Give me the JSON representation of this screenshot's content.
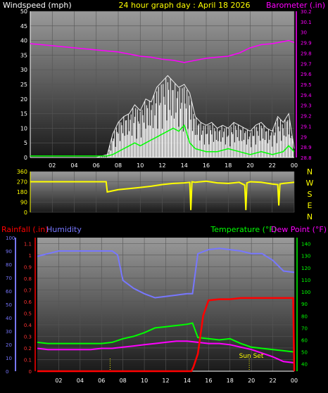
{
  "header": {
    "windspeed_label": "Windspeed (mph)",
    "title": "24 hour graph day : April 18 2026",
    "barometer_label": "Barometer (.in)"
  },
  "direction_labels": [
    "N",
    "W",
    "S",
    "E",
    "N"
  ],
  "lower_header": {
    "rainfall_label": "Rainfall (.in)",
    "humidity_label": "Humidity",
    "temperature_label": "Temperature (°F)",
    "dewpoint_label": "Dew Point (°F)"
  },
  "sunset_label": "Sun Set",
  "colors": {
    "windspeed": "#ffffff",
    "gust": "#ffffff",
    "wind_avg": "#00ff00",
    "barometer": "#ff00ff",
    "direction": "#ffff00",
    "rainfall": "#ff0000",
    "humidity": "#7777ff",
    "temperature": "#00ff00",
    "dewpoint": "#ff00ff",
    "sunset": "#ffff00"
  },
  "chart_data": [
    {
      "type": "line",
      "x_ticks": [
        "02",
        "04",
        "06",
        "08",
        "10",
        "12",
        "14",
        "16",
        "18",
        "20",
        "22",
        "00"
      ],
      "ylim": [
        0,
        50
      ],
      "y_ticks": [
        "0",
        "5",
        "10",
        "15",
        "20",
        "25",
        "30",
        "35",
        "40",
        "45",
        "50"
      ],
      "y2lim": [
        28.8,
        30.2
      ],
      "y2_ticks": [
        "28.8",
        "28.9",
        "29",
        "29.1",
        "29.2",
        "29.3",
        "29.4",
        "29.5",
        "29.6",
        "29.7",
        "29.8",
        "29.9",
        "30",
        "30.1",
        "30.2"
      ],
      "grid": true,
      "series": [
        {
          "name": "Windspeed (mph)",
          "x": [
            0,
            1,
            2,
            3,
            4,
            5,
            6,
            7,
            7.5,
            8,
            8.5,
            9,
            9.5,
            10,
            10.5,
            11,
            11.5,
            12,
            12.5,
            13,
            13.5,
            14,
            14.5,
            15,
            15.5,
            16,
            16.5,
            17,
            17.5,
            18,
            18.5,
            19,
            19.5,
            20,
            20.5,
            21,
            21.5,
            22,
            22.5,
            23,
            23.5,
            24
          ],
          "values": [
            0,
            0,
            0,
            0,
            0,
            0,
            0,
            1,
            8,
            12,
            14,
            15,
            18,
            16,
            20,
            19,
            24,
            26,
            28,
            26,
            24,
            25,
            22,
            14,
            12,
            11,
            12,
            10,
            11,
            10,
            12,
            11,
            10,
            9,
            11,
            12,
            10,
            9,
            14,
            12,
            15,
            3
          ]
        },
        {
          "name": "Average wind",
          "x": [
            0,
            7,
            7.5,
            8,
            8.5,
            9,
            9.5,
            10,
            10.5,
            11,
            11.5,
            12,
            12.5,
            13,
            13.5,
            14,
            14.5,
            15,
            16,
            17,
            18,
            19,
            20,
            21,
            22,
            23,
            23.5,
            24
          ],
          "values": [
            0.5,
            0.5,
            1,
            2,
            3,
            4,
            5,
            4,
            5,
            6,
            7,
            8,
            9,
            10,
            9,
            11,
            5,
            3,
            2,
            2,
            3,
            2,
            1,
            2,
            1,
            2,
            4,
            2
          ]
        },
        {
          "name": "Barometer (.in)",
          "axis": "y2",
          "x": [
            0,
            1,
            2,
            3,
            4,
            5,
            6,
            7,
            8,
            9,
            10,
            11,
            12,
            13,
            14,
            15,
            16,
            17,
            18,
            19,
            20,
            21,
            22,
            23,
            23.5,
            24
          ],
          "values": [
            29.89,
            29.88,
            29.87,
            29.86,
            29.85,
            29.84,
            29.83,
            29.82,
            29.81,
            29.79,
            29.77,
            29.76,
            29.74,
            29.73,
            29.71,
            29.73,
            29.75,
            29.76,
            29.77,
            29.8,
            29.85,
            29.88,
            29.89,
            29.91,
            29.92,
            29.9
          ]
        }
      ]
    },
    {
      "type": "line",
      "x_ticks": [
        "02",
        "04",
        "06",
        "08",
        "10",
        "12",
        "14",
        "16",
        "18",
        "20",
        "22",
        "00"
      ],
      "ylim": [
        0,
        360
      ],
      "y_ticks": [
        "0",
        "90",
        "180",
        "270",
        "360"
      ],
      "series": [
        {
          "name": "Wind direction",
          "x": [
            0,
            6.9,
            7,
            8,
            9,
            10,
            11,
            12,
            13,
            14,
            14.5,
            14.6,
            14.7,
            15,
            16,
            17,
            18,
            19,
            19.5,
            19.6,
            19.7,
            20,
            21,
            22,
            22.5,
            22.6,
            22.7,
            23,
            24
          ],
          "values": [
            270,
            270,
            180,
            200,
            210,
            220,
            230,
            245,
            255,
            260,
            265,
            20,
            270,
            265,
            275,
            260,
            255,
            265,
            240,
            20,
            260,
            270,
            265,
            250,
            245,
            60,
            250,
            255,
            265
          ]
        }
      ]
    },
    {
      "type": "line",
      "x_ticks": [
        "02",
        "04",
        "06",
        "08",
        "10",
        "12",
        "14",
        "16",
        "18",
        "20",
        "22",
        "00"
      ],
      "humidity_lim": [
        0,
        100
      ],
      "humidity_ticks": [
        "0",
        "10",
        "20",
        "30",
        "40",
        "50",
        "60",
        "70",
        "80",
        "90",
        "100"
      ],
      "rain_lim": [
        0,
        1.15
      ],
      "rain_ticks": [
        "0",
        "0.1",
        "0.2",
        "0.3",
        "0.4",
        "0.5",
        "0.6",
        "0.7",
        "0.8",
        "0.9",
        "1",
        "1.1"
      ],
      "temp_lim": [
        34,
        145
      ],
      "temp_ticks": [
        "40",
        "50",
        "60",
        "70",
        "80",
        "90",
        "100",
        "110",
        "120",
        "130",
        "140"
      ],
      "grid": true,
      "series": [
        {
          "name": "Humidity",
          "axis": "humidity",
          "x": [
            0,
            1,
            2,
            3,
            4,
            5,
            6,
            7,
            7.5,
            8,
            9,
            10,
            11,
            12,
            13,
            14,
            14.5,
            15,
            16,
            17,
            18,
            19,
            20,
            21,
            22,
            23,
            24
          ],
          "values": [
            86,
            88,
            90,
            90,
            90,
            90,
            90,
            90,
            87,
            68,
            62,
            58,
            55,
            56,
            57,
            58,
            58,
            88,
            91,
            92,
            91,
            90,
            88,
            88,
            83,
            75,
            74
          ]
        },
        {
          "name": "Rainfall (.in)",
          "axis": "rain",
          "x": [
            0,
            14.4,
            14.6,
            15,
            15.5,
            16,
            17,
            18,
            19,
            20,
            21,
            22,
            23,
            23.9,
            24
          ],
          "values": [
            0,
            0,
            0.04,
            0.15,
            0.48,
            0.61,
            0.62,
            0.62,
            0.63,
            0.63,
            0.63,
            0.63,
            0.63,
            0.63,
            0.0
          ]
        },
        {
          "name": "Temperature (°F)",
          "axis": "temp",
          "x": [
            0,
            1,
            2,
            3,
            4,
            5,
            6,
            7,
            8,
            9,
            10,
            11,
            12,
            13,
            14,
            14.5,
            15,
            16,
            17,
            18,
            19,
            20,
            21,
            22,
            23,
            24
          ],
          "values": [
            58,
            57,
            57,
            57,
            57,
            57,
            57,
            58,
            61,
            63,
            66,
            70,
            71,
            72,
            73,
            74,
            62,
            61,
            60,
            61,
            57,
            54,
            53,
            52,
            51,
            50
          ]
        },
        {
          "name": "Dew Point (°F)",
          "axis": "temp",
          "x": [
            0,
            1,
            2,
            3,
            4,
            5,
            6,
            7,
            8,
            9,
            10,
            11,
            12,
            13,
            14,
            15,
            16,
            17,
            18,
            19,
            20,
            21,
            22,
            23,
            24
          ],
          "values": [
            53,
            52,
            52,
            52,
            52,
            52,
            53,
            53,
            54,
            55,
            56,
            57,
            58,
            59,
            59,
            58,
            57,
            57,
            56,
            54,
            52,
            49,
            46,
            42,
            41
          ]
        }
      ],
      "markers": [
        {
          "type": "sunrise",
          "x": 6.8
        },
        {
          "type": "sunset",
          "x": 19.8
        }
      ]
    }
  ]
}
